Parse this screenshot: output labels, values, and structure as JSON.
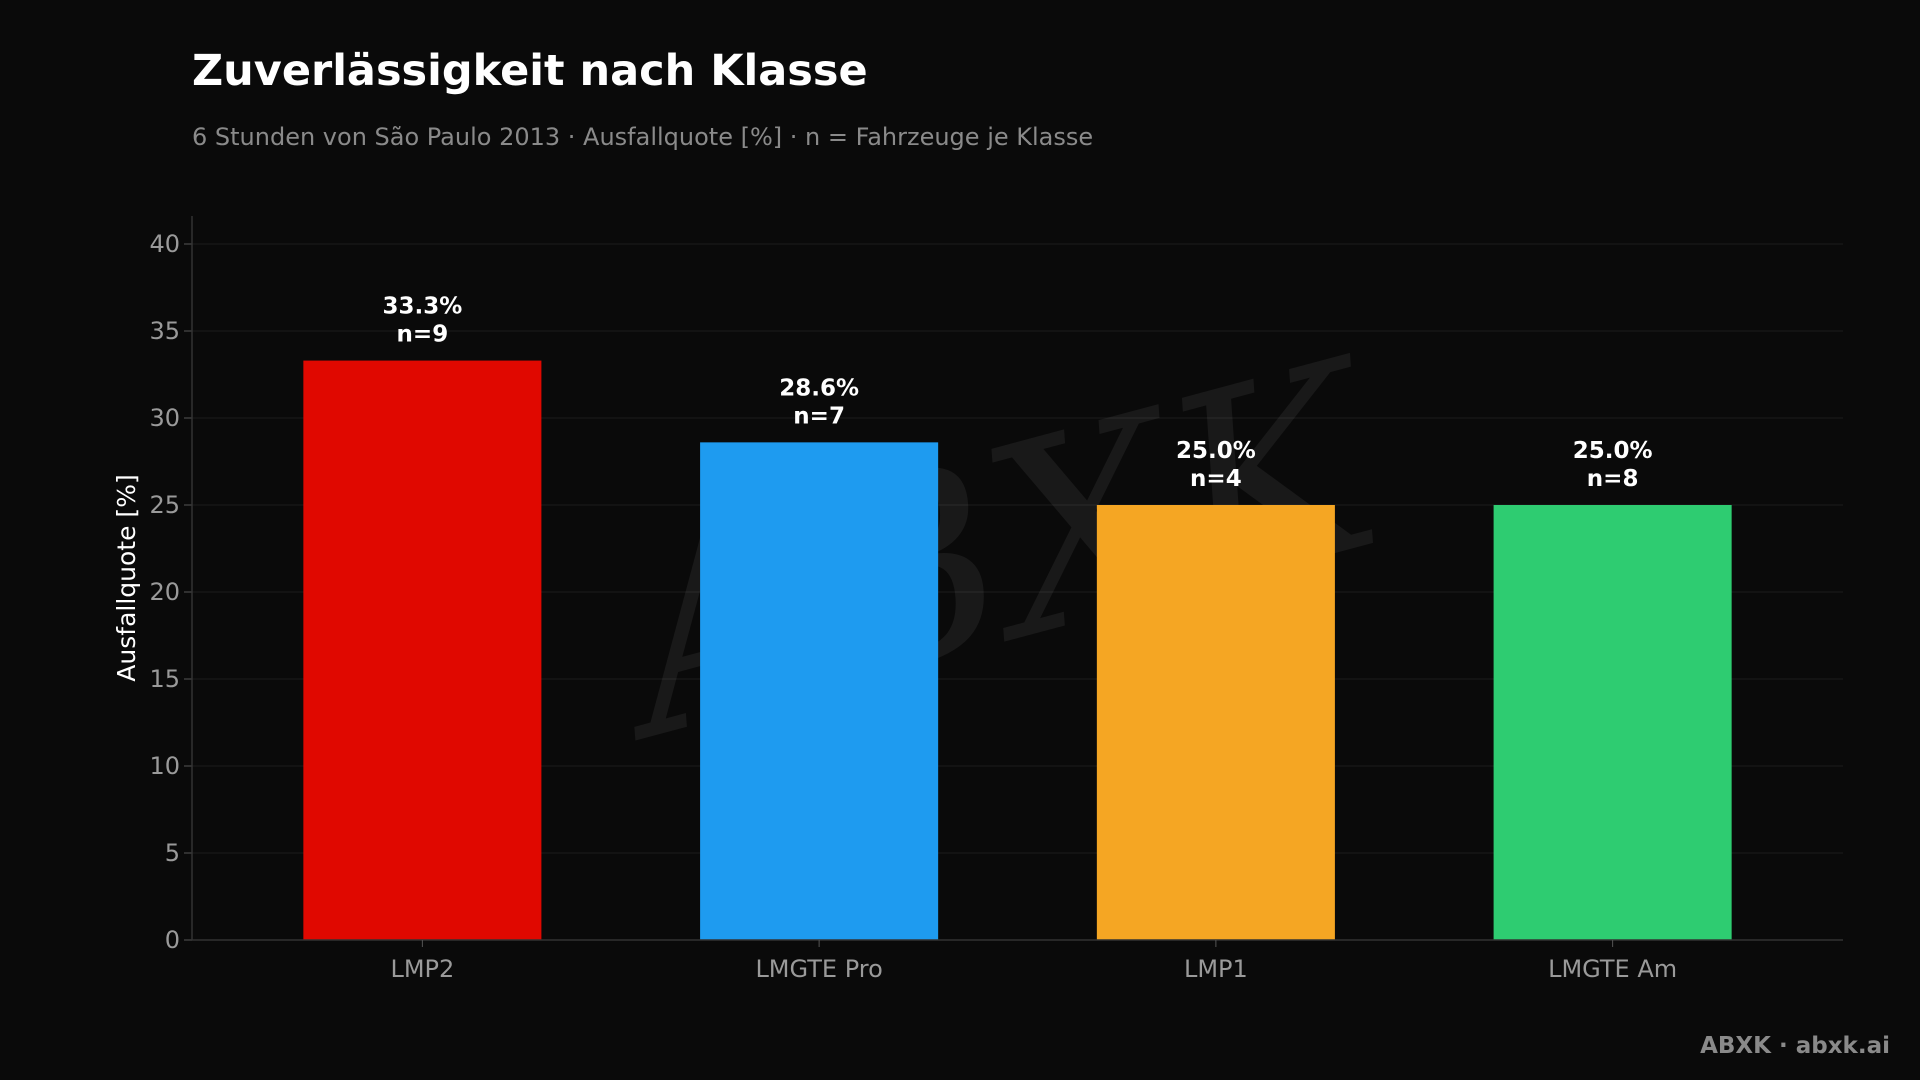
{
  "chart_data": {
    "type": "bar",
    "title": "Zuverlässigkeit nach Klasse",
    "subtitle": "6 Stunden von São Paulo 2013 · Ausfallquote [%] · n = Fahrzeuge je Klasse",
    "xlabel": "",
    "ylabel": "Ausfallquote [%]",
    "ylim": [
      0,
      40
    ],
    "yticks": [
      0,
      5,
      10,
      15,
      20,
      25,
      30,
      35,
      40
    ],
    "grid": true,
    "categories": [
      "LMP2",
      "LMGTE Pro",
      "LMP1",
      "LMGTE Am"
    ],
    "values": [
      33.3,
      28.6,
      25.0,
      25.0
    ],
    "value_labels": [
      "33.3%",
      "28.6%",
      "25.0%",
      "25.0%"
    ],
    "n_labels": [
      "n=9",
      "n=7",
      "n=4",
      "n=8"
    ],
    "colors": [
      "#e00800",
      "#1e9bf0",
      "#f5a623",
      "#2ecc71"
    ]
  },
  "watermark": {
    "text": "ABXK"
  },
  "footer": {
    "text": "ABXK · abxk.ai"
  },
  "theme": {
    "background": "#0a0a0a",
    "grid": "#1c1c1c",
    "axis": "#333333"
  }
}
